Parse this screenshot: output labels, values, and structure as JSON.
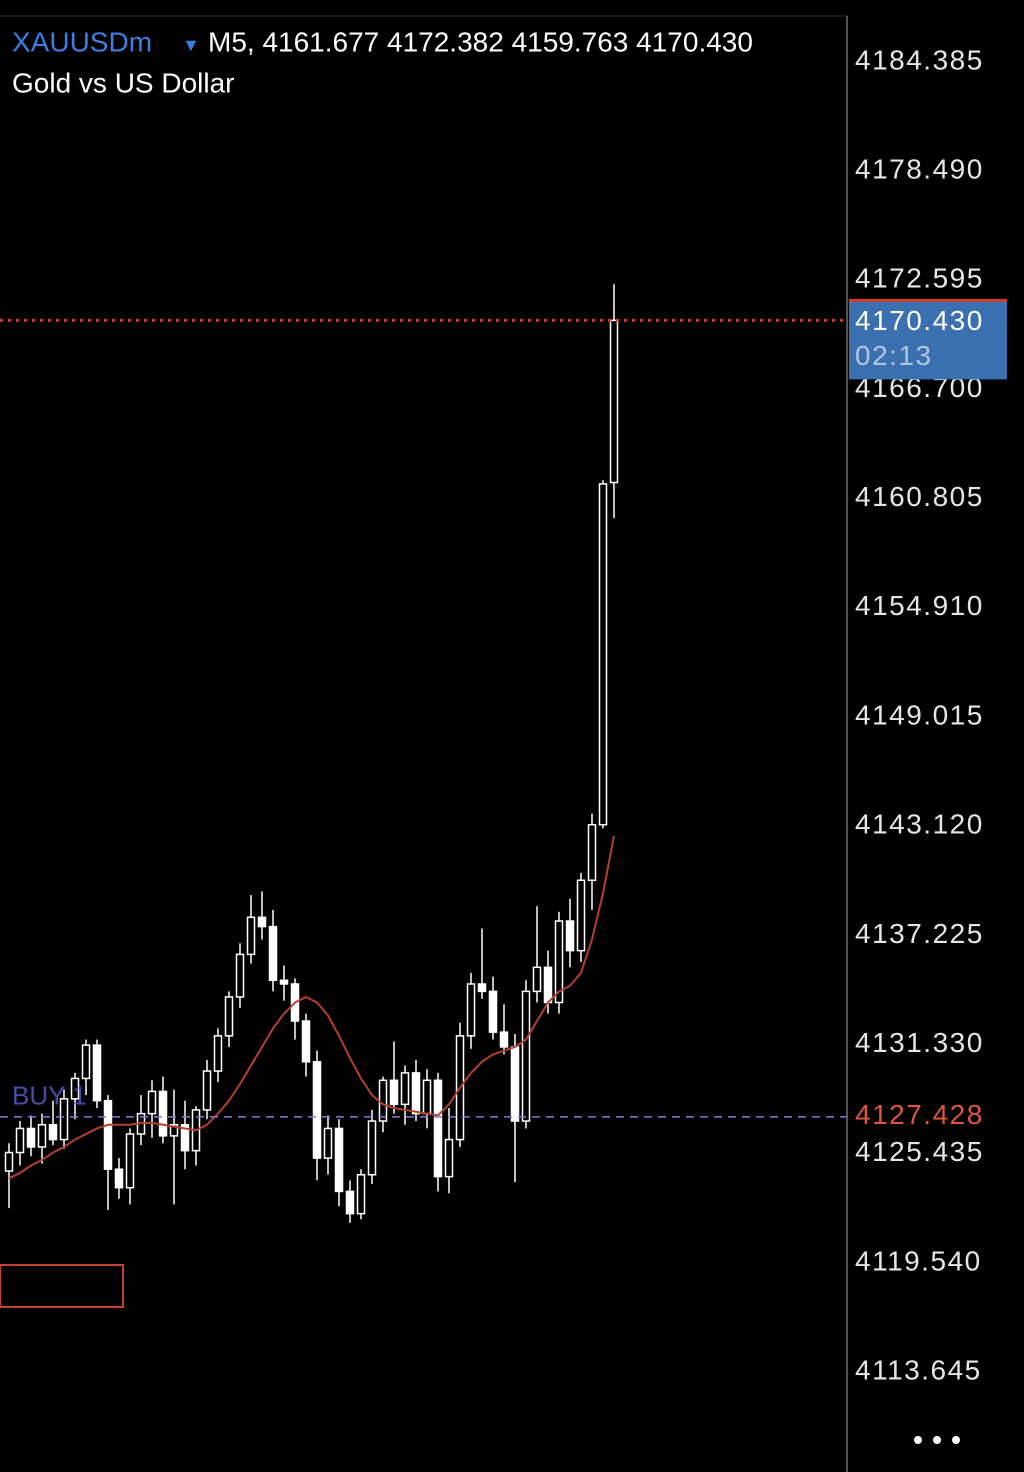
{
  "chart_data": {
    "type": "candlestick",
    "symbol": "XAUUSDm",
    "header_text": "M5, 4161.677 4172.382 4159.763 4170.430",
    "title": "Gold vs US Dollar",
    "ylim": [
      4108.25,
      4187.73
    ],
    "yticks": [
      4184.385,
      {
        "value": 4178.49,
        "label": "4178.490"
      },
      4172.595,
      {
        "value": 4166.7,
        "label": "4166.700"
      },
      4160.805,
      {
        "value": 4154.91,
        "label": "4154.910"
      },
      4149.015,
      {
        "value": 4143.12,
        "label": "4143.120"
      },
      4137.225,
      {
        "value": 4131.33,
        "label": "4131.330"
      },
      4125.435,
      {
        "value": 4119.54,
        "label": "4119.540"
      },
      4113.645
    ],
    "up_color": "#ffffff",
    "down_color": "#ffffff",
    "candles": {
      "open": [
        4124.5,
        4125.5,
        4126.8,
        4125.8,
        4127.0,
        4126.2,
        4128.4,
        4129.5,
        4131.3,
        4128.3,
        4124.6,
        4123.6,
        4126.5,
        4127.6,
        4128.8,
        4126.4,
        4127.0,
        4125.6,
        4127.8,
        4129.9,
        4131.8,
        4133.9,
        4136.2,
        4138.2,
        4137.7,
        4134.8,
        4134.6,
        4132.6,
        4130.4,
        4125.2,
        4126.8,
        4123.4,
        4122.2,
        4124.3,
        4127.2,
        4129.4,
        4128.1,
        4129.8,
        4127.6,
        4129.4,
        4124.2,
        4126.2,
        4131.8,
        4134.6,
        4134.2,
        4132.0,
        4131.2,
        4127.2,
        4134.2,
        4135.5,
        4133.6,
        4138.0,
        4136.4,
        4140.2,
        4143.2,
        4161.677
      ],
      "high": [
        4126.0,
        4127.2,
        4127.5,
        4127.6,
        4128.3,
        4128.9,
        4129.8,
        4131.6,
        4131.6,
        4128.6,
        4125.2,
        4126.8,
        4128.6,
        4129.4,
        4129.6,
        4128.9,
        4128.3,
        4128.0,
        4130.5,
        4132.2,
        4134.2,
        4136.8,
        4139.4,
        4139.6,
        4138.6,
        4135.6,
        4134.9,
        4133.0,
        4131.0,
        4127.5,
        4127.3,
        4124.0,
        4124.6,
        4127.8,
        4129.6,
        4131.5,
        4130.2,
        4130.5,
        4130.0,
        4129.8,
        4127.9,
        4132.5,
        4135.2,
        4137.6,
        4135.0,
        4133.5,
        4131.9,
        4134.8,
        4138.8,
        4136.4,
        4138.5,
        4139.2,
        4140.6,
        4143.8,
        4161.8,
        4172.382
      ],
      "low": [
        4122.5,
        4124.8,
        4125.3,
        4124.9,
        4125.9,
        4125.7,
        4127.3,
        4128.6,
        4127.9,
        4122.4,
        4123.0,
        4122.7,
        4125.9,
        4126.3,
        4126.0,
        4122.7,
        4124.6,
        4124.8,
        4127.3,
        4129.3,
        4131.2,
        4133.3,
        4135.7,
        4137.0,
        4134.2,
        4133.7,
        4131.6,
        4129.6,
        4124.0,
        4124.3,
        4122.6,
        4121.7,
        4121.9,
        4123.8,
        4126.6,
        4127.6,
        4127.0,
        4127.2,
        4126.8,
        4123.4,
        4123.3,
        4125.8,
        4131.1,
        4133.8,
        4131.6,
        4130.8,
        4123.9,
        4126.8,
        4133.6,
        4133.0,
        4133.0,
        4135.5,
        4135.8,
        4138.6,
        4143.0,
        4159.763
      ],
      "close": [
        4125.5,
        4126.8,
        4125.8,
        4127.0,
        4126.2,
        4128.4,
        4129.5,
        4131.3,
        4128.3,
        4124.6,
        4123.6,
        4126.5,
        4127.6,
        4128.8,
        4126.4,
        4127.0,
        4125.6,
        4127.8,
        4129.9,
        4131.8,
        4133.9,
        4136.2,
        4138.2,
        4137.7,
        4134.8,
        4134.6,
        4132.6,
        4130.4,
        4125.2,
        4126.8,
        4123.4,
        4122.2,
        4124.3,
        4127.2,
        4129.4,
        4128.1,
        4129.8,
        4127.6,
        4129.4,
        4124.2,
        4126.2,
        4131.8,
        4134.6,
        4134.2,
        4132.0,
        4131.2,
        4127.2,
        4134.2,
        4135.5,
        4133.6,
        4138.0,
        4136.4,
        4140.2,
        4143.2,
        4161.6,
        4170.43
      ]
    },
    "ma": {
      "color": "#b5402e",
      "values": [
        4124.1,
        4124.4,
        4124.8,
        4125.1,
        4125.5,
        4125.8,
        4126.2,
        4126.5,
        4126.8,
        4127.0,
        4127.0,
        4127.0,
        4127.1,
        4127.1,
        4127.0,
        4126.9,
        4126.8,
        4126.7,
        4127.0,
        4127.6,
        4128.3,
        4129.2,
        4130.2,
        4131.2,
        4132.2,
        4133.0,
        4133.6,
        4133.9,
        4133.6,
        4132.9,
        4131.8,
        4130.6,
        4129.5,
        4128.6,
        4128.1,
        4127.9,
        4127.8,
        4127.7,
        4127.6,
        4127.5,
        4128.1,
        4129.0,
        4129.8,
        4130.4,
        4130.8,
        4131.0,
        4131.2,
        4131.6,
        4132.6,
        4133.6,
        4134.2,
        4134.5,
        4135.2,
        4137.0,
        4139.5,
        4142.6
      ]
    },
    "current_price": {
      "value": 4170.43,
      "label": "4170.430"
    },
    "timer": "02:13",
    "order": {
      "label": "BUY 1",
      "price": 4127.428
    }
  }
}
